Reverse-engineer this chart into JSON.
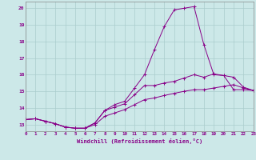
{
  "title": "",
  "xlabel": "Windchill (Refroidissement éolien,°C)",
  "ylabel": "",
  "bg_color": "#cce8e8",
  "line_color": "#880088",
  "grid_color": "#aacccc",
  "xmin": 0,
  "xmax": 23,
  "ymin": 12.6,
  "ymax": 20.4,
  "yticks": [
    13,
    14,
    15,
    16,
    17,
    18,
    19,
    20
  ],
  "xticks": [
    0,
    1,
    2,
    3,
    4,
    5,
    6,
    7,
    8,
    9,
    10,
    11,
    12,
    13,
    14,
    15,
    16,
    17,
    18,
    19,
    20,
    21,
    22,
    23
  ],
  "series": [
    [
      13.3,
      13.35,
      13.2,
      13.05,
      12.85,
      12.78,
      12.78,
      13.1,
      13.85,
      14.2,
      14.4,
      15.2,
      16.0,
      17.5,
      18.9,
      19.9,
      20.0,
      20.1,
      17.8,
      16.0,
      15.95,
      15.1,
      15.1,
      15.05
    ],
    [
      13.3,
      13.35,
      13.2,
      13.05,
      12.85,
      12.78,
      12.78,
      13.1,
      13.85,
      14.05,
      14.25,
      14.8,
      15.35,
      15.35,
      15.5,
      15.6,
      15.8,
      16.0,
      15.85,
      16.05,
      15.95,
      15.85,
      15.25,
      15.05
    ],
    [
      13.3,
      13.35,
      13.2,
      13.05,
      12.85,
      12.78,
      12.78,
      13.0,
      13.5,
      13.7,
      13.9,
      14.2,
      14.5,
      14.6,
      14.75,
      14.88,
      15.0,
      15.1,
      15.1,
      15.2,
      15.3,
      15.4,
      15.2,
      15.05
    ]
  ]
}
